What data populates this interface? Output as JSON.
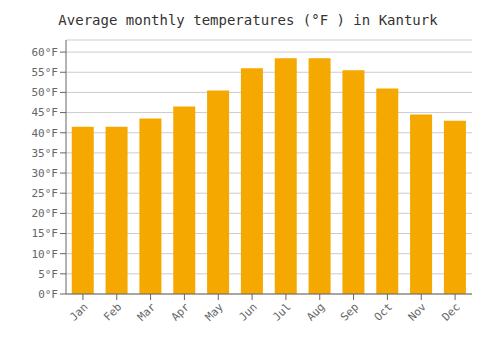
{
  "chart_data": {
    "type": "bar",
    "title": "Average monthly temperatures (°F ) in Kanturk",
    "categories": [
      "Jan",
      "Feb",
      "Mar",
      "Apr",
      "May",
      "Jun",
      "Jul",
      "Aug",
      "Sep",
      "Oct",
      "Nov",
      "Dec"
    ],
    "values": [
      41.5,
      41.5,
      43.5,
      46.5,
      50.5,
      56.0,
      58.5,
      58.5,
      55.5,
      51.0,
      44.5,
      43.0
    ],
    "color": "#F5A800",
    "ylim": [
      0,
      63
    ],
    "yticks": [
      {
        "value": 0,
        "label": "0°F"
      },
      {
        "value": 5,
        "label": "5°F"
      },
      {
        "value": 10,
        "label": "10°F"
      },
      {
        "value": 15,
        "label": "15°F"
      },
      {
        "value": 20,
        "label": "20°F"
      },
      {
        "value": 25,
        "label": "25°F"
      },
      {
        "value": 30,
        "label": "30°F"
      },
      {
        "value": 35,
        "label": "35°F"
      },
      {
        "value": 40,
        "label": "40°F"
      },
      {
        "value": 45,
        "label": "45°F"
      },
      {
        "value": 50,
        "label": "50°F"
      },
      {
        "value": 55,
        "label": "55°F"
      },
      {
        "value": 60,
        "label": "60°F"
      }
    ],
    "grid": true
  }
}
